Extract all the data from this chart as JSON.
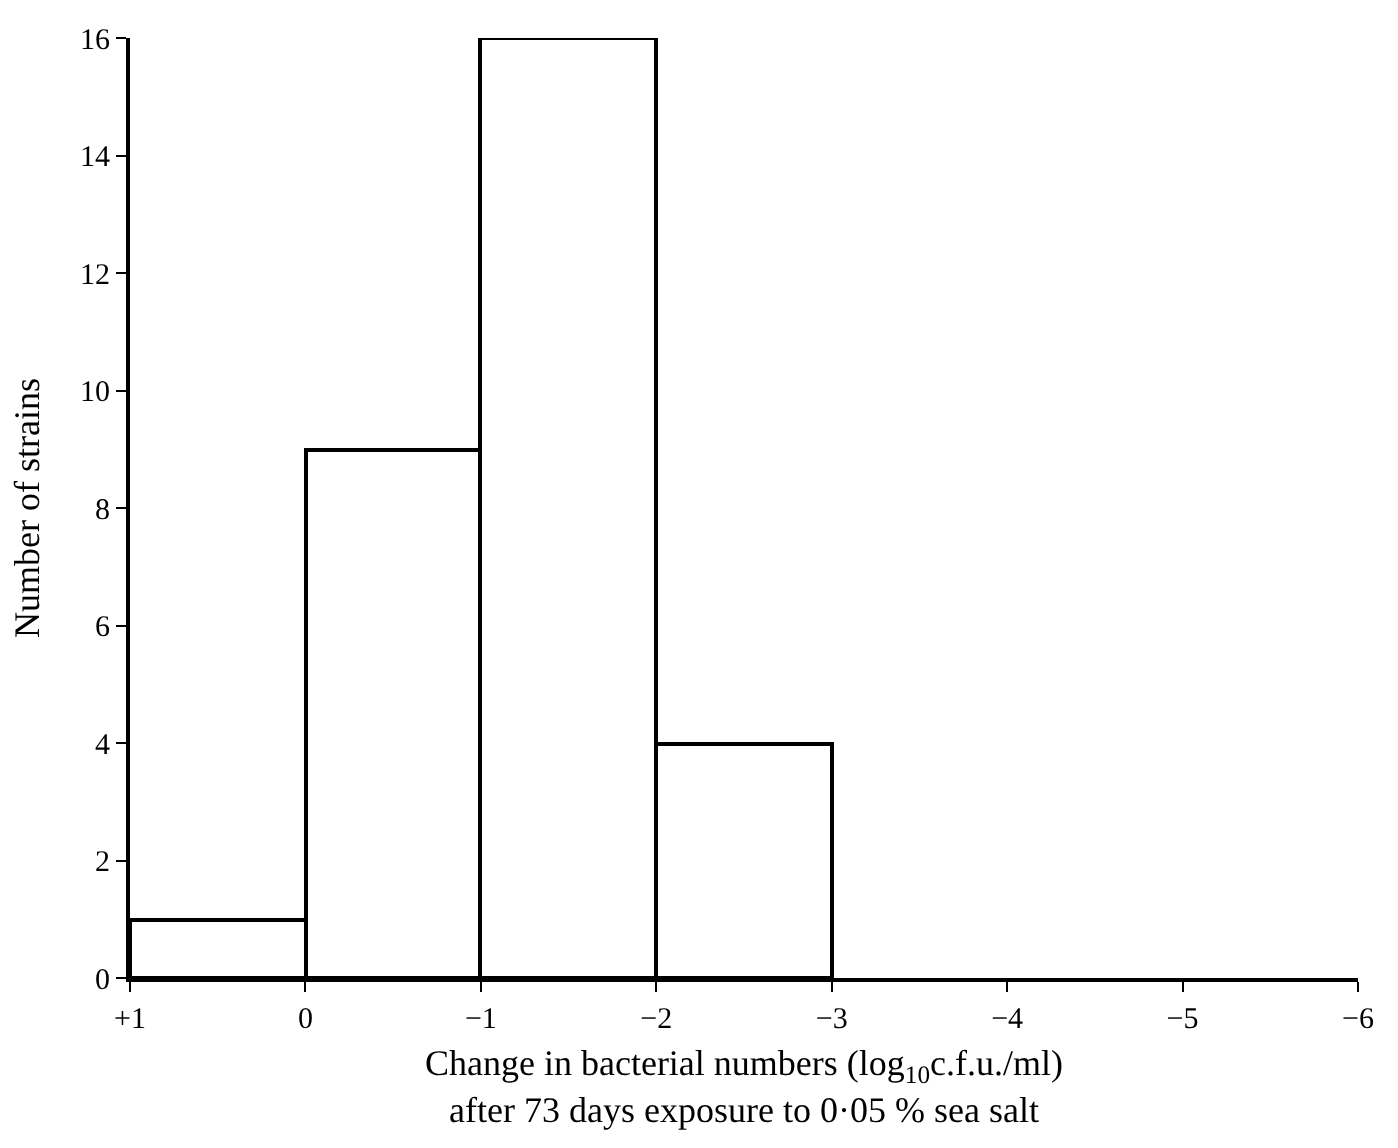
{
  "chart_data": {
    "type": "histogram",
    "xlabel": "Change in bacterial numbers (log$_{10}$c.f.u./ml)\nafter 73 days exposure to 0·05 % sea salt",
    "ylabel": "Number of strains",
    "bins": [
      1,
      0,
      -1,
      -2,
      -3
    ],
    "values": [
      1,
      9,
      16,
      4
    ],
    "color": "#ffffff",
    "xlim": [
      1,
      -6
    ],
    "xticks": [
      {
        "value": 1,
        "label": "+1"
      },
      0,
      {
        "value": -1,
        "label": "−1"
      },
      {
        "value": -2,
        "label": "−2"
      },
      {
        "value": -3,
        "label": "−3"
      },
      {
        "value": -4,
        "label": "−4"
      },
      {
        "value": -5,
        "label": "−5"
      },
      {
        "value": -6,
        "label": "−6"
      }
    ],
    "ylim": [
      0,
      16
    ],
    "yticks": [
      0,
      2,
      4,
      6,
      8,
      10,
      12,
      14,
      16
    ]
  }
}
